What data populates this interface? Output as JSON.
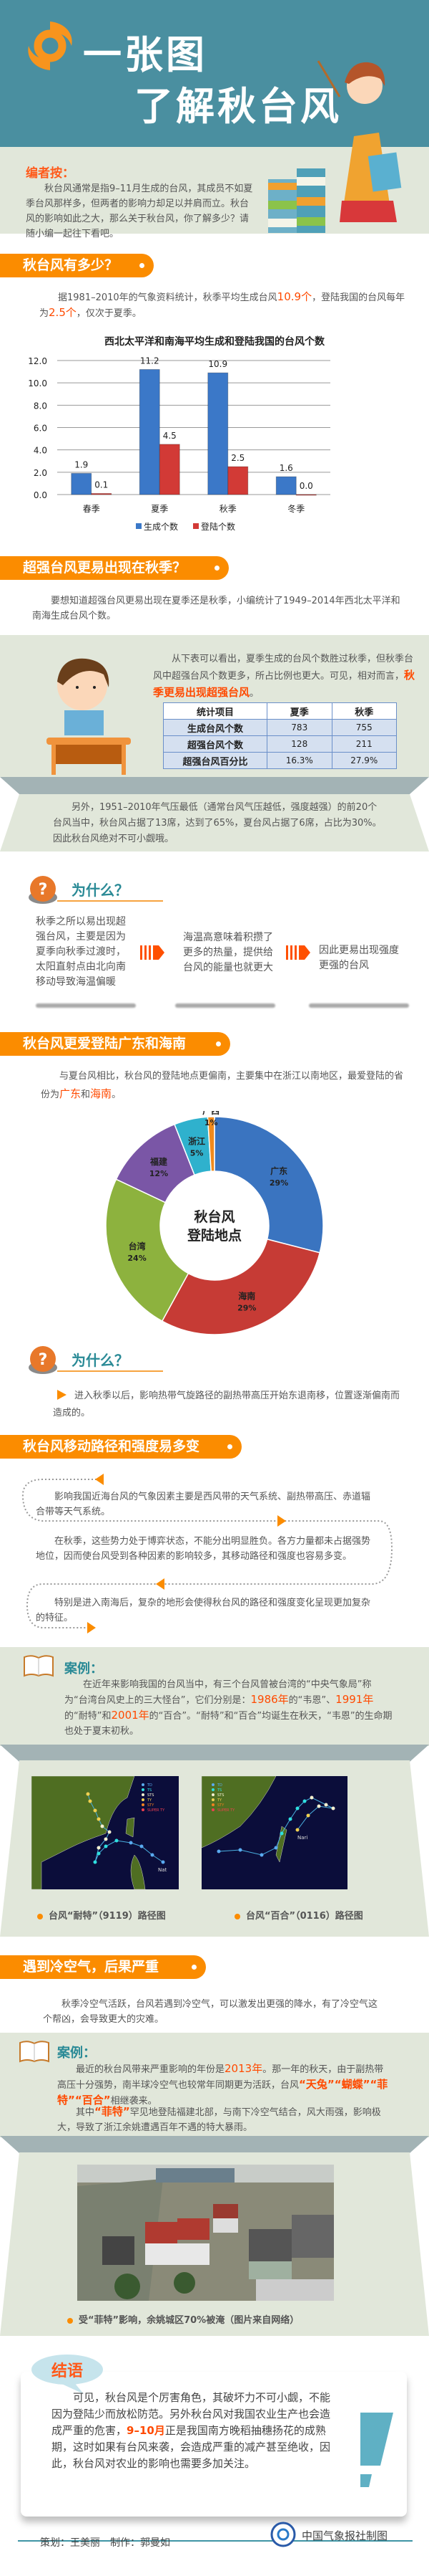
{
  "colors": {
    "header": "#4a8fa0",
    "accent": "#fb8c00",
    "highlight": "#ff4a00",
    "band": "#e1e7da",
    "teal": "#2a8a96"
  },
  "header": {
    "title_line1": "一张图",
    "title_line2": "了解秋台风",
    "icon": "typhoon-swirl-icon"
  },
  "editor_note": {
    "label": "编者按：",
    "text": "秋台风通常是指9–11月生成的台风，其成员不如夏季台风那样多，但两者的影响力却足以并肩而立。秋台风的影响如此之大，那么关于秋台风，你了解多少？请随小编一起往下看吧。"
  },
  "section1": {
    "heading": "秋台风有多少？",
    "paragraph": [
      {
        "t": "据1981–2010年的气象资料统计，秋季平均生成台风"
      },
      {
        "t": "10.9个",
        "hl": true
      },
      {
        "t": "，登陆我国的台风每年为"
      },
      {
        "t": "2.5个",
        "hl": true
      },
      {
        "t": "，仅次于夏季。"
      }
    ]
  },
  "chart_data": [
    {
      "type": "bar",
      "title": "西北太平洋和南海平均生成和登陆我国的台风个数",
      "categories": [
        "春季",
        "夏季",
        "秋季",
        "冬季"
      ],
      "series": [
        {
          "name": "生成个数",
          "values": [
            1.9,
            11.2,
            10.9,
            1.6
          ],
          "color": "#3b78c8"
        },
        {
          "name": "登陆个数",
          "values": [
            0.1,
            4.5,
            2.5,
            0.0
          ],
          "color": "#d23a36"
        }
      ],
      "ylim": [
        0,
        12
      ],
      "yticks": [
        "0.0",
        "2.0",
        "4.0",
        "6.0",
        "8.0",
        "10.0",
        "12.0"
      ],
      "grid": true,
      "legend": "bottom",
      "data_labels": true
    },
    {
      "type": "pie",
      "donut": true,
      "center_label": [
        "秋台风",
        "登陆地点"
      ],
      "slices": [
        {
          "label": "广东",
          "value": 29,
          "color": "#3a74c0"
        },
        {
          "label": "海南",
          "value": 29,
          "color": "#c63b35"
        },
        {
          "label": "台湾",
          "value": 24,
          "color": "#8db23e"
        },
        {
          "label": "福建",
          "value": 12,
          "color": "#7a56a6"
        },
        {
          "label": "浙江",
          "value": 5,
          "color": "#2fb1cd"
        },
        {
          "label": "广西",
          "value": 1,
          "color": "#f08a1c"
        }
      ]
    }
  ],
  "section2": {
    "heading": "超强台风更易出现在秋季？",
    "paragraph": "要想知道超强台风更易出现在夏季还是秋季，小编统计了1949–2014年西北太平洋和南海生成台风个数。",
    "observation": [
      {
        "t": "从下表可以看出，夏季生成的台风个数胜过秋季，但秋季台风中超强台风个数更多，所占比例也更大。可见，相对而言，"
      },
      {
        "t": "秋季更易出现超强台风",
        "hlb": true
      },
      {
        "t": "。"
      }
    ],
    "table": {
      "headers": [
        "统计项目",
        "夏季",
        "秋季"
      ],
      "rows": [
        [
          "生成台风个数",
          "783",
          "755"
        ],
        [
          "超强台风个数",
          "128",
          "211"
        ],
        [
          "超强台风百分比",
          "16.3%",
          "27.9%"
        ]
      ]
    },
    "extra": "另外，1951–2010年气压最低（通常台风气压越低，强度越强）的前20个台风当中，秋台风占据了13席，达到了65%，夏台风占据了6席，占比为30%。因此秋台风绝对不可小觑哦。"
  },
  "why1": {
    "title": "为什么？",
    "steps": [
      "秋季之所以易出现超强台风，主要是因为夏季向秋季过渡时，太阳直射点由北向南移动导致海温偏暖",
      "海温高意味着积攒了更多的热量，提供给台风的能量也就更大",
      "因此更易出现强度更强的台风"
    ]
  },
  "section3": {
    "heading": "秋台风更爱登陆广东和海南",
    "paragraph": [
      {
        "t": "与夏台风相比，秋台风的登陆地点更偏南，主要集中在浙江以南地区，最爱登陆的省份为"
      },
      {
        "t": "广东",
        "hl": true
      },
      {
        "t": "和"
      },
      {
        "t": "海南",
        "hl": true
      },
      {
        "t": "。"
      }
    ]
  },
  "why2": {
    "title": "为什么？",
    "text": "进入秋季以后，影响热带气旋路径的副热带高压开始东退南移，位置逐渐偏南而造成的。"
  },
  "section4": {
    "heading": "秋台风移动路径和强度易多变",
    "flow": [
      "影响我国近海台风的气象因素主要是西风带的天气系统、副热带高压、赤道辐合带等天气系统。",
      "在秋季，这些势力处于博弈状态，不能分出明显胜负。各方力量都未占据强势地位，因而使台风受到各种因素的影响较多，其移动路径和强度也容易多变。",
      "特别是进入南海后，复杂的地形会使得秋台风的路径和强度变化呈现更加复杂的特征。"
    ],
    "case": {
      "label": "案例：",
      "text": [
        {
          "t": "在近年来影响我国的台风当中，有三个台风曾被台湾的“中央气象局”称为“台湾台风史上的三大怪台”，它们分别是："
        },
        {
          "t": "1986年",
          "hl": true
        },
        {
          "t": "的“韦恩”、"
        },
        {
          "t": "1991年",
          "hl": true
        },
        {
          "t": "的“耐特”和"
        },
        {
          "t": "2001年",
          "hl": true
        },
        {
          "t": "的“百合”。“耐特”和“百合”均诞生在秋天，“韦恩”的生命期也处于夏末初秋。"
        }
      ]
    },
    "maps": [
      {
        "caption": "台风“耐特”（9119）路径图",
        "name_label": "Nat"
      },
      {
        "caption": "台风“百合”（0116）路径图",
        "name_label": "Nari"
      }
    ],
    "map_legend": [
      "TD",
      "TS",
      "STS",
      "TY",
      "STY",
      "SUPER TY"
    ]
  },
  "section5": {
    "heading": "遇到冷空气，后果严重",
    "paragraph": "秋季冷空气活跃，台风若遇到冷空气，可以激发出更强的降水，有了冷空气这个帮凶，会导致更大的灾难。",
    "case": {
      "label": "案例：",
      "text1": [
        {
          "t": "最近的秋台风带来严重影响的年份是"
        },
        {
          "t": "2013年",
          "hl": true
        },
        {
          "t": "。那一年的秋天，由于副热带高压十分强势，南半球冷空气也较常年同期更为活跃，台风"
        },
        {
          "t": "“天兔”“蝴蝶”“菲特”“百合”",
          "hlb": true
        },
        {
          "t": "相继袭来。"
        }
      ],
      "text2": [
        {
          "t": "其中"
        },
        {
          "t": "“菲特”",
          "hlb": true
        },
        {
          "t": "罕见地登陆福建北部，与南下冷空气结合，风大雨强，影响极大，导致了浙江余姚遭遇百年不遇的特大暴雨。"
        }
      ]
    },
    "photo_caption": "受“菲特”影响，余姚城区70%被淹（图片来自网络）"
  },
  "conclusion": {
    "label": "结语",
    "text": [
      {
        "t": "可见，秋台风是个厉害角色，其破坏力不可小觑，不能因为登陆少而放松防范。另外秋台风对我国农业生产也会造成严重的危害，"
      },
      {
        "t": "9–10月",
        "hlb": true
      },
      {
        "t": "正是我国南方晚稻抽穗扬花的成熟期，这时如果有台风来袭，会造成严重的减产甚至绝收，因此，秋台风对农业的影响也需要多加关注。"
      }
    ]
  },
  "footer": {
    "credits": "策划：王美丽　制作：郭曼如",
    "publisher": "中国气象报社制图"
  }
}
